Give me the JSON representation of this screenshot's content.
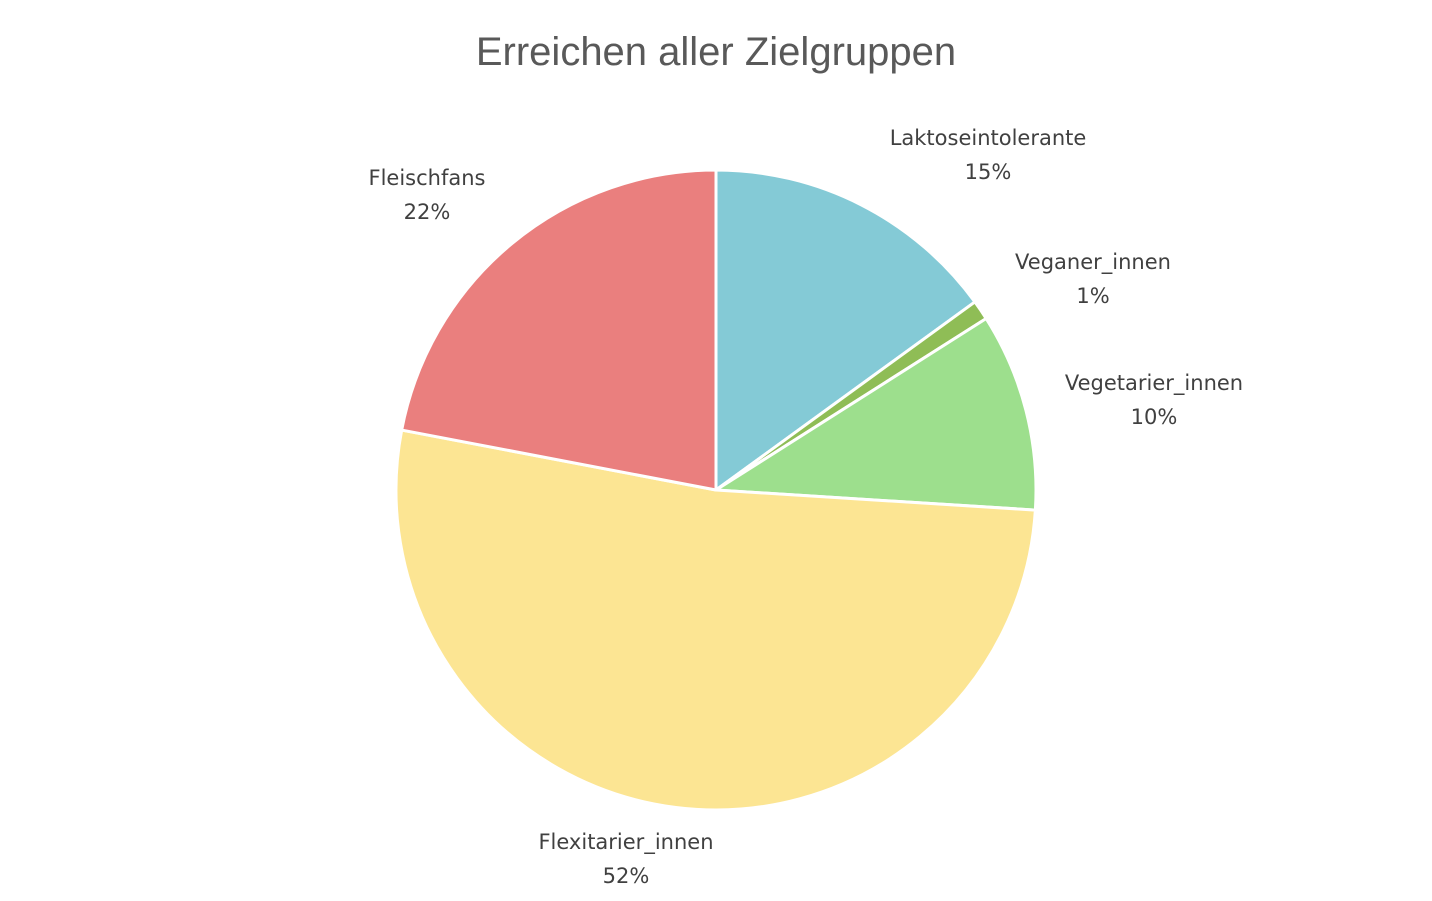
{
  "chart_data": {
    "type": "pie",
    "title": "Erreichen aller Zielgruppen",
    "start_angle_deg": 0,
    "direction": "clockwise",
    "slices": [
      {
        "label": "Laktoseintolerante",
        "value": 15,
        "display": "15%",
        "color": "#84cad6"
      },
      {
        "label": "Veganer_innen",
        "value": 1,
        "display": "1%",
        "color": "#8fbd56"
      },
      {
        "label": "Vegetarier_innen",
        "value": 10,
        "display": "10%",
        "color": "#9ddf8d"
      },
      {
        "label": "Flexitarier_innen",
        "value": 52,
        "display": "52%",
        "color": "#fce593"
      },
      {
        "label": "Fleischfans",
        "value": 22,
        "display": "22%",
        "color": "#ea7f7e"
      }
    ]
  }
}
